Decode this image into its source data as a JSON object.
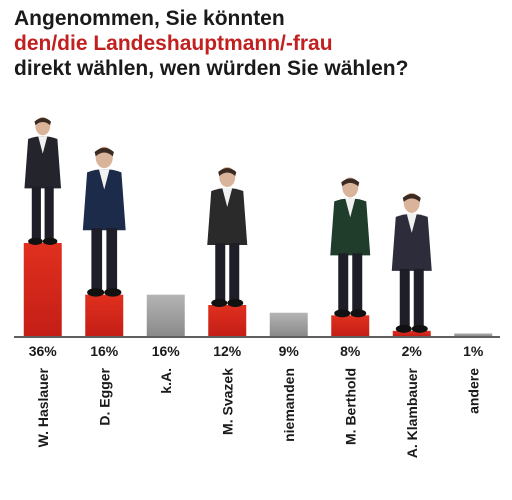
{
  "title": {
    "line1": "Angenommen, Sie könnten",
    "line2": "den/die Landeshauptmann/-frau",
    "line3": "direkt wählen, wen würden Sie wählen?"
  },
  "colors": {
    "candidate": "#d6281c",
    "other": "#9a9a9a",
    "text": "#1a1a1a",
    "highlight": "#c21f1f"
  },
  "chart_data": {
    "type": "bar",
    "categories": [
      "W. Haslauer",
      "D. Egger",
      "k.A.",
      "M. Svazek",
      "niemanden",
      "M. Berthold",
      "A. Klambauer",
      "andere"
    ],
    "values": [
      36,
      16,
      16,
      12,
      9,
      8,
      2,
      1
    ],
    "value_labels": [
      "36%",
      "16%",
      "16%",
      "12%",
      "9%",
      "8%",
      "2%",
      "1%"
    ],
    "bar_kinds": [
      "candidate",
      "candidate",
      "other",
      "candidate",
      "other",
      "candidate",
      "candidate",
      "other"
    ],
    "has_photo": [
      true,
      true,
      false,
      true,
      false,
      true,
      true,
      false
    ],
    "ylim": [
      0,
      36
    ],
    "grid": false,
    "legend": "none"
  }
}
